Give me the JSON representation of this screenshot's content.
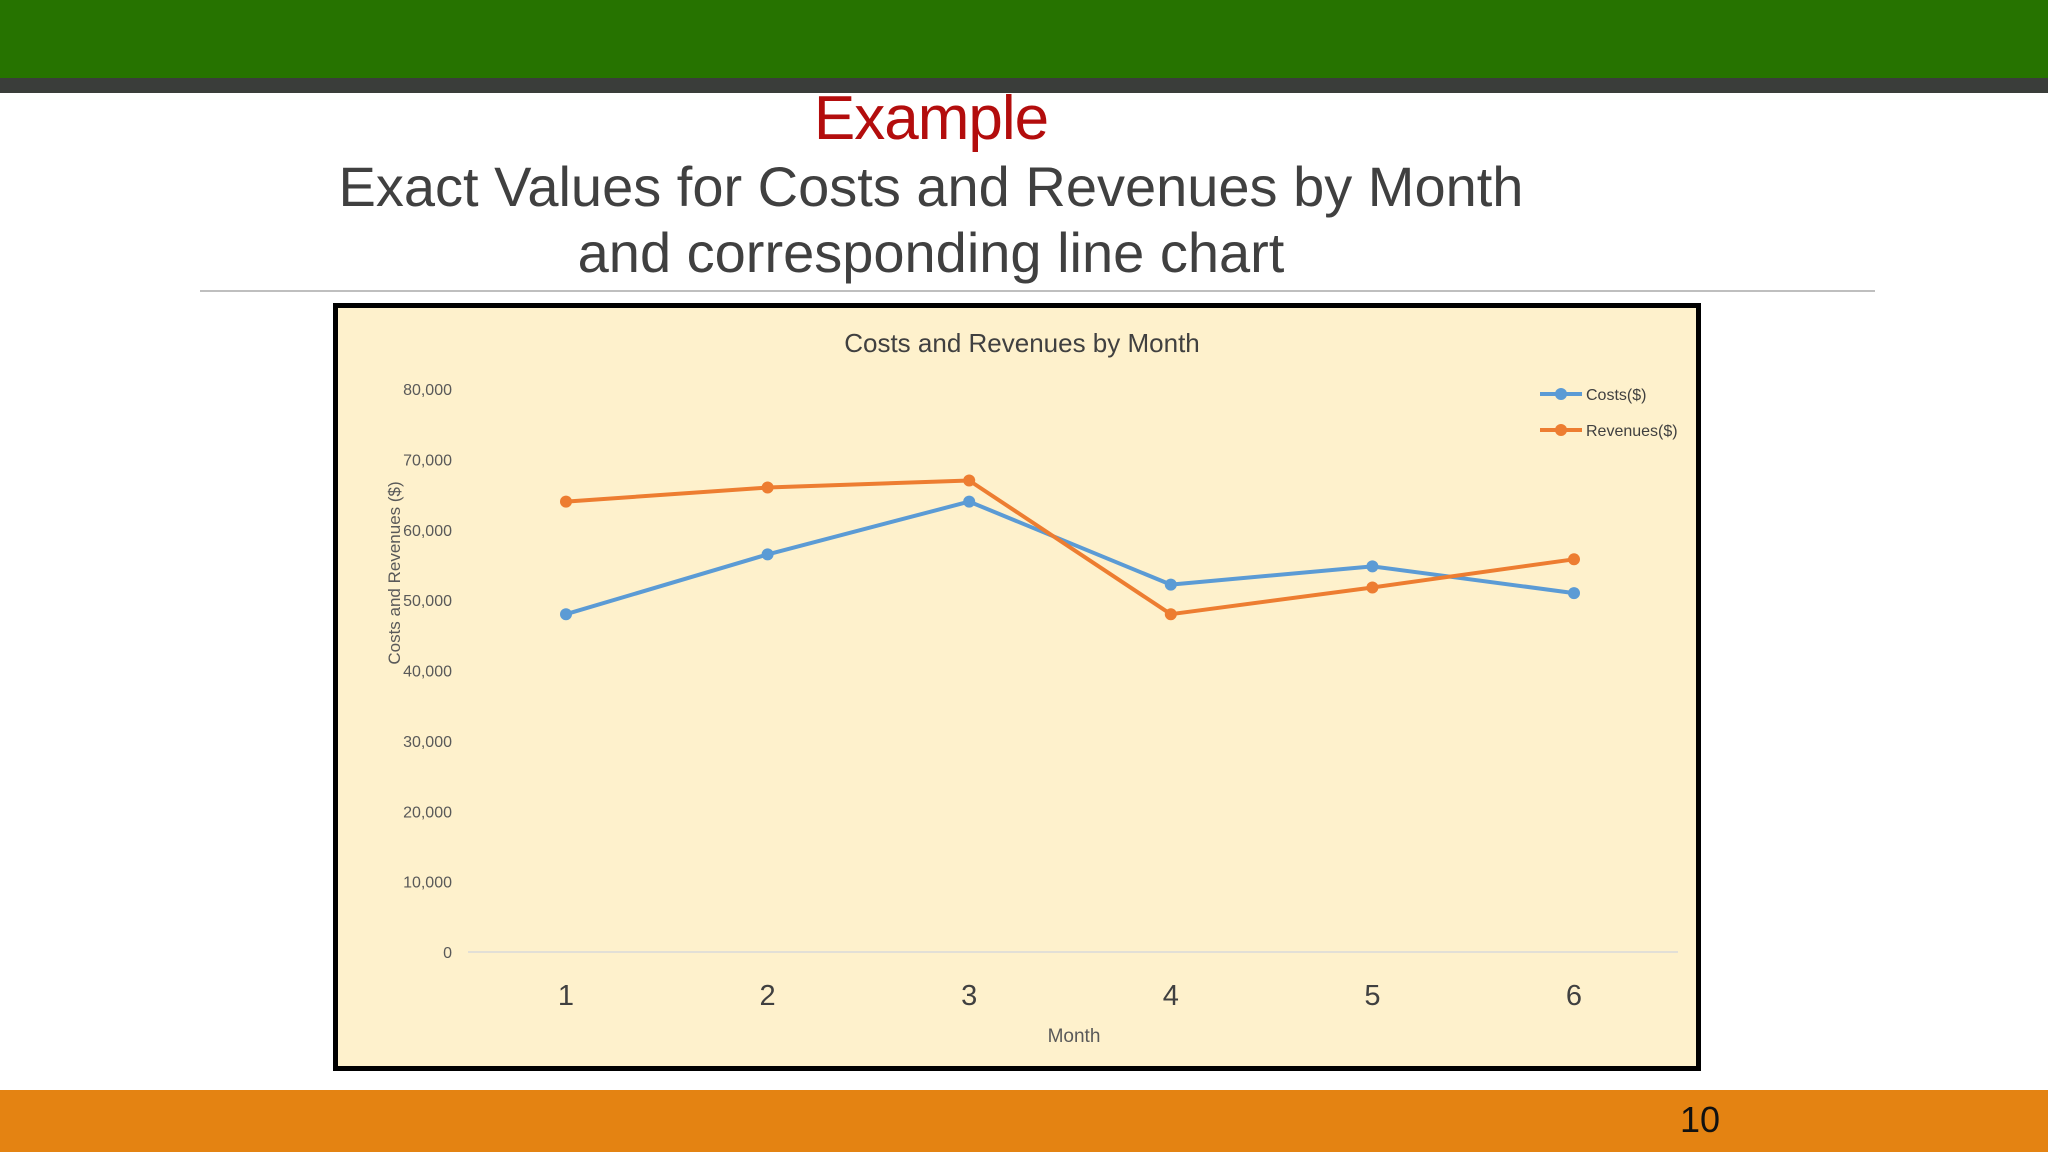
{
  "slide": {
    "title": "Example",
    "subtitle_line1": "Exact Values for Costs and Revenues by Month",
    "subtitle_line2": "and corresponding line chart",
    "page_number": "10"
  },
  "colors": {
    "header_green": "#267300",
    "footer_orange": "#e48312",
    "title_red": "#b30d0d",
    "chart_background": "#fef1cc",
    "costs_series": "#5b9bd5",
    "revenues_series": "#ed7d31"
  },
  "chart_data": {
    "type": "line",
    "title": "Costs and Revenues by Month",
    "xlabel": "Month",
    "ylabel": "Costs and Revenues ($)",
    "x": [
      1,
      2,
      3,
      4,
      5,
      6
    ],
    "ylim": [
      0,
      80000
    ],
    "yticks": [
      0,
      10000,
      20000,
      30000,
      40000,
      50000,
      60000,
      70000,
      80000
    ],
    "ytick_labels": [
      "0",
      "10,000",
      "20,000",
      "30,000",
      "40,000",
      "50,000",
      "60,000",
      "70,000",
      "80,000"
    ],
    "grid": false,
    "legend_position": "top-right",
    "series": [
      {
        "name": "Costs($)",
        "color": "#5b9bd5",
        "values": [
          48000,
          56500,
          64000,
          52200,
          54800,
          51000
        ]
      },
      {
        "name": "Revenues($)",
        "color": "#ed7d31",
        "values": [
          64000,
          66000,
          67000,
          48000,
          51800,
          55800
        ]
      }
    ]
  }
}
